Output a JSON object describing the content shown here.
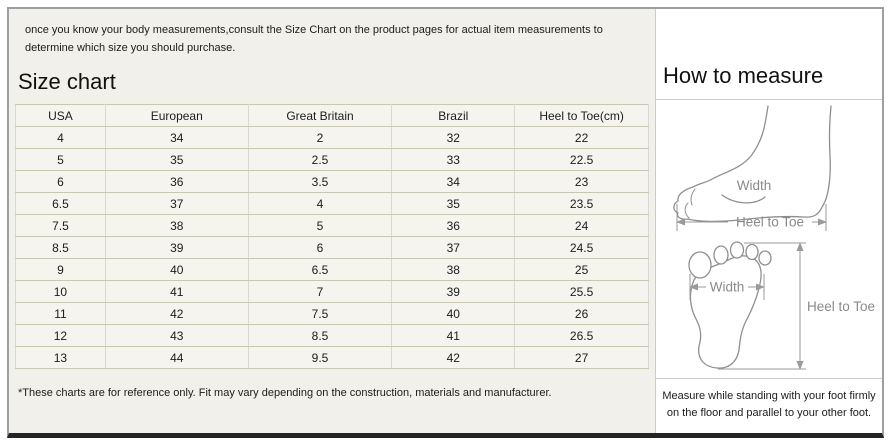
{
  "intro": {
    "line1": "once you know your body measurements,consult the Size Chart on the product pages for actual item measurements to",
    "line2": "determine which size you should purchase."
  },
  "size_chart": {
    "title": "Size chart",
    "columns": [
      "USA",
      "European",
      "Great Britain",
      "Brazil",
      "Heel to Toe(cm)"
    ],
    "rows": [
      [
        "4",
        "34",
        "2",
        "32",
        "22"
      ],
      [
        "5",
        "35",
        "2.5",
        "33",
        "22.5"
      ],
      [
        "6",
        "36",
        "3.5",
        "34",
        "23"
      ],
      [
        "6.5",
        "37",
        "4",
        "35",
        "23.5"
      ],
      [
        "7.5",
        "38",
        "5",
        "36",
        "24"
      ],
      [
        "8.5",
        "39",
        "6",
        "37",
        "24.5"
      ],
      [
        "9",
        "40",
        "6.5",
        "38",
        "25"
      ],
      [
        "10",
        "41",
        "7",
        "39",
        "25.5"
      ],
      [
        "11",
        "42",
        "7.5",
        "40",
        "26"
      ],
      [
        "12",
        "43",
        "8.5",
        "41",
        "26.5"
      ],
      [
        "13",
        "44",
        "9.5",
        "42",
        "27"
      ]
    ],
    "footnote": "*These charts are for reference only. Fit may vary depending on the construction, materials and manufacturer."
  },
  "how_to_measure": {
    "title": "How to measure",
    "side_view": {
      "width_label": "Width",
      "length_label": "Heel to Toe"
    },
    "top_view": {
      "width_label": "Width",
      "length_label": "Heel to Toe"
    },
    "note": "Measure while standing with your foot firmly on the floor and parallel to your other foot."
  },
  "colors": {
    "left_background": "#f1f0eb",
    "right_background": "#ffffff",
    "cell_background": "#f5f4ef",
    "cell_border_horizontal": "#c9c7b2",
    "cell_border_vertical": "#d9d8d0",
    "panel_border": "#9f9f9f",
    "panel_bottom_border": "#242424",
    "divider": "#ccccc6",
    "diagram_stroke": "#8f8f8f",
    "text": "#1c1c1c"
  }
}
